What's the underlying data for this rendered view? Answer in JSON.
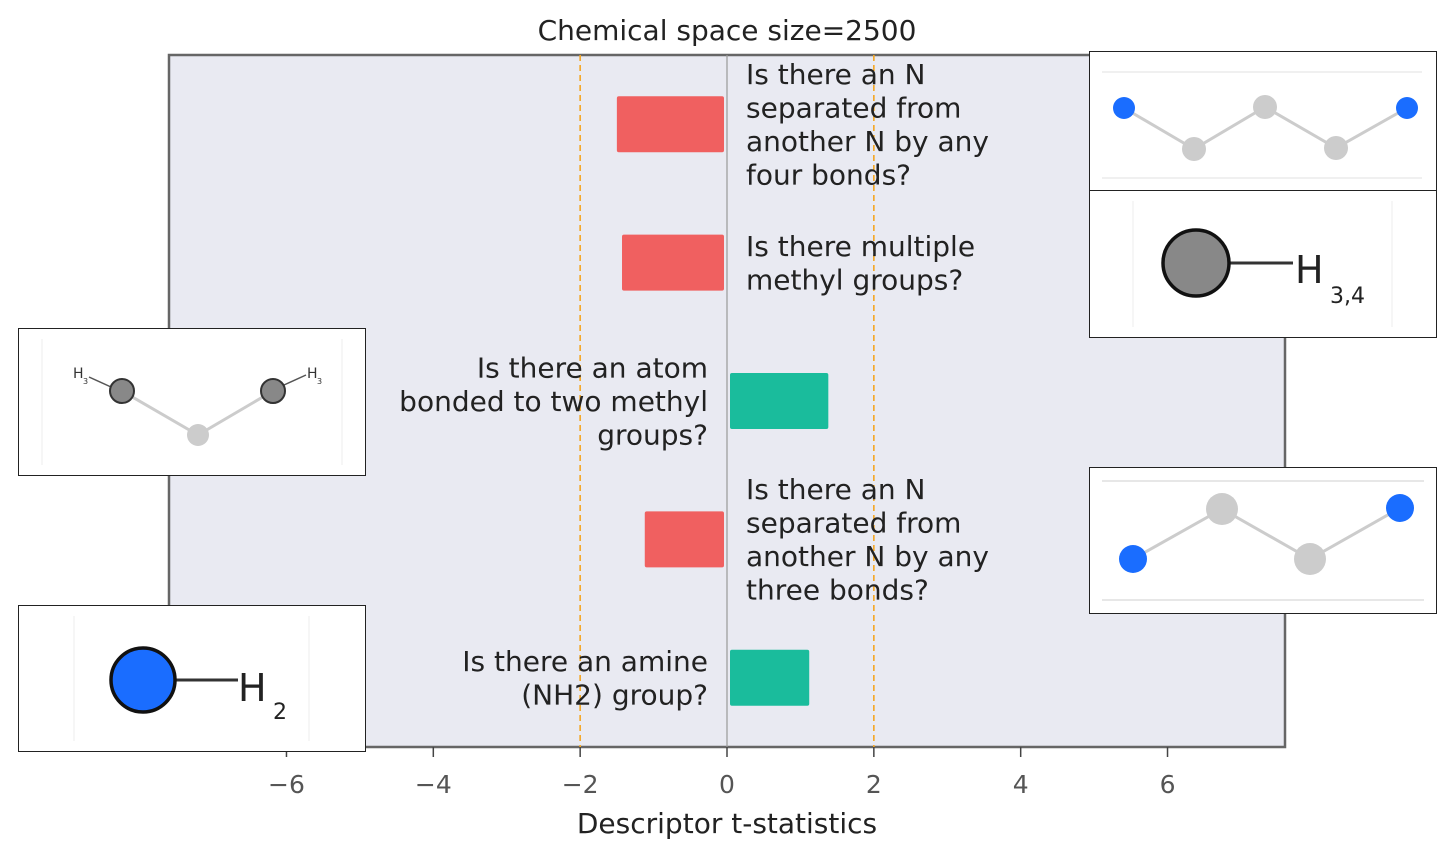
{
  "chart_data": {
    "type": "bar",
    "orientation": "horizontal",
    "title": "Chemical space size=2500",
    "xlabel": "Descriptor t-statistics",
    "ylabel": "",
    "xlim": [
      -7.6,
      7.6
    ],
    "xticks": [
      -6,
      -4,
      -2,
      0,
      2,
      4,
      6
    ],
    "xtick_labels": [
      "−6",
      "−4",
      "−2",
      "0",
      "2",
      "4",
      "6"
    ],
    "reference_lines": [
      -2,
      0,
      2
    ],
    "grid": false,
    "categories": [
      "Is there an N separated from another N by any four bonds?",
      "Is there multiple methyl groups?",
      "Is there an atom bonded to two methyl groups?",
      "Is there an N separated from another N by any three bonds?",
      "Is there an amine (NH2) group?"
    ],
    "values": [
      -1.5,
      -1.43,
      1.38,
      -1.12,
      1.12
    ],
    "label_lines": [
      [
        "Is there an N",
        "separated from",
        "another N by any",
        "four bonds?"
      ],
      [
        "Is there multiple",
        "methyl groups?"
      ],
      [
        "Is there an atom",
        "bonded to two methyl",
        "groups?"
      ],
      [
        "Is there an N",
        "separated from",
        "another N by any",
        "three bonds?"
      ],
      [
        "Is there an amine",
        "(NH2) group?"
      ]
    ],
    "colors": {
      "negative": "#f06060",
      "positive": "#1abc9c",
      "plot_background": "#e9eaf2",
      "reference_line": "#f5a623",
      "zero_line": "#999999",
      "frame": "#666666"
    }
  },
  "molecules": {
    "m1": {
      "h_labels": [
        "H",
        "H"
      ],
      "h_sub": [
        "3",
        "3"
      ]
    },
    "m2": {
      "h_label": "H",
      "h_sub": "3,4"
    },
    "m3": {
      "h_labels": [
        "H",
        "H"
      ],
      "h_sub": [
        "3",
        "3"
      ]
    },
    "m5": {
      "h_label": "H",
      "h_sub": "2"
    }
  }
}
